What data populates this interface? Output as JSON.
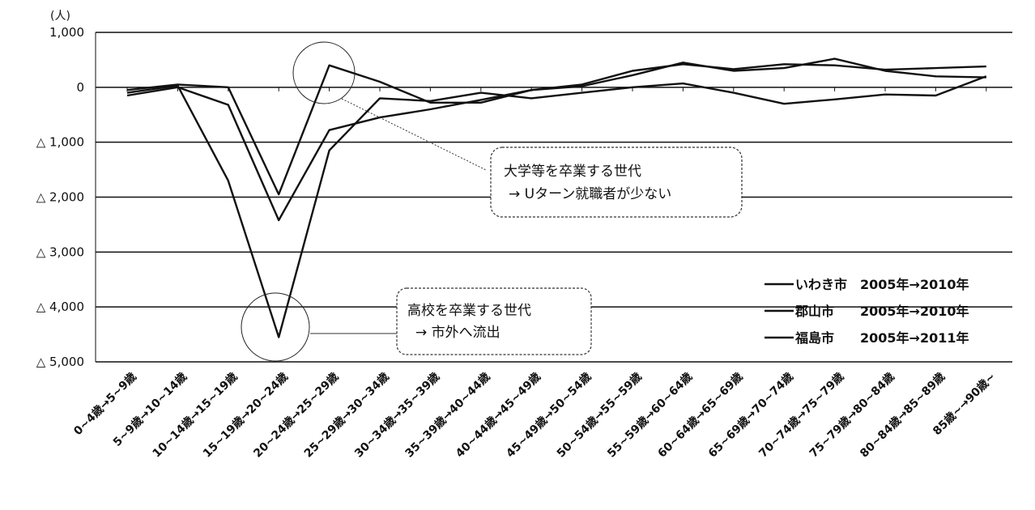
{
  "chart_data": {
    "type": "line",
    "unit_label": "(人)",
    "ylim": [
      -5000,
      1000
    ],
    "y_ticks": [
      {
        "value": 1000,
        "label": "1,000"
      },
      {
        "value": 0,
        "label": "0"
      },
      {
        "value": -1000,
        "label": "△ 1,000"
      },
      {
        "value": -2000,
        "label": "△ 2,000"
      },
      {
        "value": -3000,
        "label": "△ 3,000"
      },
      {
        "value": -4000,
        "label": "△ 4,000"
      },
      {
        "value": -5000,
        "label": "△ 5,000"
      }
    ],
    "grid": "horizontal",
    "legend_position": "right",
    "categories": [
      "0~4歳→5~9歳",
      "5~9歳→10~14歳",
      "10~14歳→15~19歳",
      "15~19歳→20~24歳",
      "20~24歳→25~29歳",
      "25~29歳→30~34歳",
      "30~34歳→35~39歳",
      "35~39歳→40~44歳",
      "40~44歳→45~49歳",
      "45~49歳→50~54歳",
      "50~54歳→55~59歳",
      "55~59歳→60~64歳",
      "60~64歳→65~69歳",
      "65~69歳→70~74歳",
      "70~74歳→75~79歳",
      "75~79歳→80~84歳",
      "80~84歳→85~89歳",
      "85歳~→90歳~"
    ],
    "series": [
      {
        "name": "いわき市　2005年→2010年",
        "values": [
          -100,
          30,
          -1700,
          -4550,
          -1150,
          -200,
          -250,
          -100,
          -200,
          -100,
          0,
          70,
          -100,
          -300,
          -220,
          -130,
          -150,
          200
        ]
      },
      {
        "name": "郡山市　　2005年→2010年",
        "values": [
          -50,
          50,
          0,
          -1950,
          400,
          100,
          -280,
          -280,
          -50,
          20,
          220,
          450,
          300,
          350,
          520,
          300,
          200,
          180
        ]
      },
      {
        "name": "福島市　　2005年→2011年",
        "values": [
          -150,
          0,
          -320,
          -2420,
          -780,
          -550,
          -400,
          -230,
          -50,
          50,
          300,
          420,
          330,
          420,
          400,
          320,
          350,
          380
        ]
      }
    ],
    "annotations": [
      {
        "text_lines": [
          "大学等を卒業する世代",
          "→ Uターン就職者が少ない"
        ]
      },
      {
        "text_lines": [
          "高校を卒業する世代",
          "→ 市外へ流出"
        ]
      }
    ]
  }
}
